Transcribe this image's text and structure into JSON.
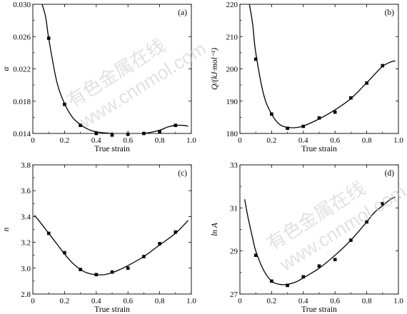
{
  "chart_data": [
    {
      "type": "scatter",
      "panel_label": "(a)",
      "xlabel": "True strain",
      "ylabel": "α",
      "xlim": [
        0,
        1.0
      ],
      "ylim": [
        0.014,
        0.03
      ],
      "xticks": [
        "0",
        "0.2",
        "0.4",
        "0.6",
        "0.8",
        "1.0"
      ],
      "yticks": [
        "0.014",
        "0.018",
        "0.022",
        "0.026",
        "0.030"
      ],
      "points": [
        [
          0.1,
          0.0258
        ],
        [
          0.2,
          0.0176
        ],
        [
          0.3,
          0.015
        ],
        [
          0.4,
          0.014
        ],
        [
          0.5,
          0.0138
        ],
        [
          0.6,
          0.0139
        ],
        [
          0.7,
          0.014
        ],
        [
          0.8,
          0.0142
        ],
        [
          0.9,
          0.015
        ]
      ],
      "fit": [
        [
          0.05,
          0.0305
        ],
        [
          0.08,
          0.0285
        ],
        [
          0.1,
          0.0258
        ],
        [
          0.15,
          0.0205
        ],
        [
          0.2,
          0.0177
        ],
        [
          0.25,
          0.016
        ],
        [
          0.3,
          0.0151
        ],
        [
          0.35,
          0.0145
        ],
        [
          0.4,
          0.0142
        ],
        [
          0.5,
          0.014
        ],
        [
          0.6,
          0.0139
        ],
        [
          0.7,
          0.014
        ],
        [
          0.8,
          0.0144
        ],
        [
          0.85,
          0.0148
        ],
        [
          0.9,
          0.015
        ],
        [
          0.95,
          0.015
        ],
        [
          0.98,
          0.0149
        ]
      ]
    },
    {
      "type": "scatter",
      "panel_label": "(b)",
      "xlabel": "True strain",
      "ylabel": "Q/(kJ·mol⁻¹)",
      "xlim": [
        0,
        1.0
      ],
      "ylim": [
        180,
        220
      ],
      "xticks": [
        "0",
        "0.2",
        "0.4",
        "0.6",
        "0.8",
        "1.0"
      ],
      "yticks": [
        "180",
        "190",
        "200",
        "210",
        "220"
      ],
      "points": [
        [
          0.1,
          203
        ],
        [
          0.2,
          186
        ],
        [
          0.3,
          181.6
        ],
        [
          0.4,
          182.2
        ],
        [
          0.5,
          184.8
        ],
        [
          0.6,
          186.6
        ],
        [
          0.7,
          191
        ],
        [
          0.8,
          195.6
        ],
        [
          0.9,
          201
        ]
      ],
      "fit": [
        [
          0.06,
          220
        ],
        [
          0.08,
          214
        ],
        [
          0.1,
          205
        ],
        [
          0.15,
          192
        ],
        [
          0.2,
          186
        ],
        [
          0.25,
          182.8
        ],
        [
          0.3,
          181.9
        ],
        [
          0.35,
          181.8
        ],
        [
          0.4,
          182.3
        ],
        [
          0.5,
          184.5
        ],
        [
          0.6,
          187.3
        ],
        [
          0.7,
          190.8
        ],
        [
          0.8,
          195.7
        ],
        [
          0.85,
          198.3
        ],
        [
          0.9,
          200.8
        ],
        [
          0.95,
          202.1
        ],
        [
          0.98,
          202.5
        ]
      ]
    },
    {
      "type": "scatter",
      "panel_label": "(c)",
      "xlabel": "True strain",
      "ylabel": "n",
      "xlim": [
        0,
        1.0
      ],
      "ylim": [
        2.8,
        3.8
      ],
      "xticks": [
        "0",
        "0.2",
        "0.4",
        "0.6",
        "0.8",
        "1.0"
      ],
      "yticks": [
        "2.8",
        "3.0",
        "3.2",
        "3.4",
        "3.6",
        "3.8"
      ],
      "points": [
        [
          0.1,
          3.27
        ],
        [
          0.2,
          3.12
        ],
        [
          0.3,
          2.99
        ],
        [
          0.4,
          2.95
        ],
        [
          0.5,
          2.97
        ],
        [
          0.6,
          3.0
        ],
        [
          0.7,
          3.09
        ],
        [
          0.8,
          3.19
        ],
        [
          0.9,
          3.28
        ]
      ],
      "fit": [
        [
          0.01,
          3.41
        ],
        [
          0.05,
          3.35
        ],
        [
          0.1,
          3.27
        ],
        [
          0.15,
          3.19
        ],
        [
          0.2,
          3.11
        ],
        [
          0.25,
          3.04
        ],
        [
          0.3,
          2.99
        ],
        [
          0.35,
          2.96
        ],
        [
          0.4,
          2.95
        ],
        [
          0.45,
          2.95
        ],
        [
          0.5,
          2.965
        ],
        [
          0.55,
          2.99
        ],
        [
          0.6,
          3.02
        ],
        [
          0.7,
          3.09
        ],
        [
          0.8,
          3.18
        ],
        [
          0.9,
          3.27
        ],
        [
          0.98,
          3.37
        ]
      ]
    },
    {
      "type": "scatter",
      "panel_label": "(d)",
      "xlabel": "True strain",
      "ylabel": "ln A",
      "xlim": [
        0,
        1.0
      ],
      "ylim": [
        27,
        33
      ],
      "xticks": [
        "0",
        "0.2",
        "0.4",
        "0.6",
        "0.8",
        "1.0"
      ],
      "yticks": [
        "27",
        "29",
        "31",
        "33"
      ],
      "points": [
        [
          0.1,
          28.8
        ],
        [
          0.2,
          27.6
        ],
        [
          0.3,
          27.4
        ],
        [
          0.4,
          27.8
        ],
        [
          0.5,
          28.3
        ],
        [
          0.6,
          28.6
        ],
        [
          0.7,
          29.5
        ],
        [
          0.8,
          30.35
        ],
        [
          0.9,
          31.2
        ]
      ],
      "fit": [
        [
          0.03,
          31.4
        ],
        [
          0.05,
          30.6
        ],
        [
          0.08,
          29.6
        ],
        [
          0.1,
          29.0
        ],
        [
          0.15,
          28.1
        ],
        [
          0.2,
          27.6
        ],
        [
          0.25,
          27.45
        ],
        [
          0.3,
          27.45
        ],
        [
          0.35,
          27.55
        ],
        [
          0.4,
          27.75
        ],
        [
          0.5,
          28.2
        ],
        [
          0.6,
          28.8
        ],
        [
          0.7,
          29.5
        ],
        [
          0.8,
          30.35
        ],
        [
          0.85,
          30.8
        ],
        [
          0.9,
          31.1
        ],
        [
          0.95,
          31.4
        ],
        [
          0.98,
          31.5
        ]
      ]
    }
  ],
  "watermark": {
    "line1": "有色金属在线",
    "line2": "www.cnnmol.com"
  },
  "colors": {
    "ink": "#000000",
    "watermark": "#c9c9c9"
  }
}
